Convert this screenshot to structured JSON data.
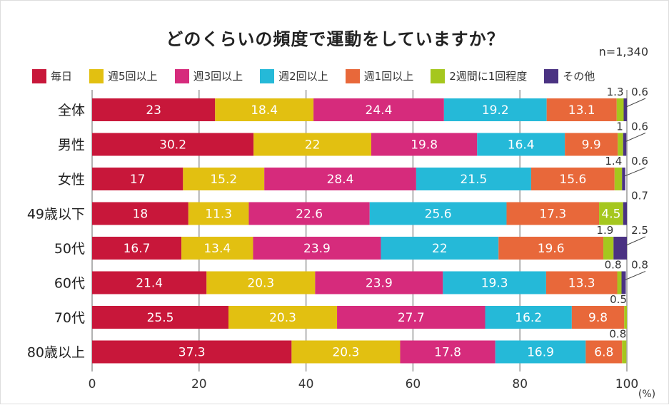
{
  "chart_data": {
    "type": "bar",
    "orientation": "horizontal",
    "stacked": true,
    "title": "どのくらいの頻度で運動をしていますか？",
    "note": "n=1,340",
    "unit": "(%)",
    "xlim": [
      0,
      100
    ],
    "xticks": [
      0,
      20,
      40,
      60,
      80,
      100
    ],
    "grid": true,
    "legend_position": "top",
    "categories": [
      "全体",
      "男性",
      "女性",
      "49歳以下",
      "50代",
      "60代",
      "70代",
      "80歳以上"
    ],
    "series": [
      {
        "name": "毎日",
        "color": "#c8173a",
        "values": [
          23,
          30.2,
          17,
          18,
          16.7,
          21.4,
          25.5,
          37.3
        ]
      },
      {
        "name": "週5回以上",
        "color": "#e2c011",
        "values": [
          18.4,
          22,
          15.2,
          11.3,
          13.4,
          20.3,
          20.3,
          20.3
        ]
      },
      {
        "name": "週3回以上",
        "color": "#d62b7c",
        "values": [
          24.4,
          19.8,
          28.4,
          22.6,
          23.9,
          23.9,
          27.7,
          17.8
        ]
      },
      {
        "name": "週2回以上",
        "color": "#25b9d8",
        "values": [
          19.2,
          16.4,
          21.5,
          25.6,
          22,
          19.3,
          16.2,
          16.9
        ]
      },
      {
        "name": "週1回以上",
        "color": "#e8683a",
        "values": [
          13.1,
          9.9,
          15.6,
          17.3,
          19.6,
          13.3,
          9.8,
          6.8
        ]
      },
      {
        "name": "2週間に1回程度",
        "color": "#a5c71e",
        "values": [
          1.3,
          1,
          1.4,
          4.5,
          1.9,
          0.8,
          0.5,
          0.8
        ]
      },
      {
        "name": "その他",
        "color": "#4a3282",
        "values": [
          0.6,
          0.6,
          0.6,
          0.7,
          2.5,
          0.8,
          null,
          null
        ]
      }
    ]
  }
}
